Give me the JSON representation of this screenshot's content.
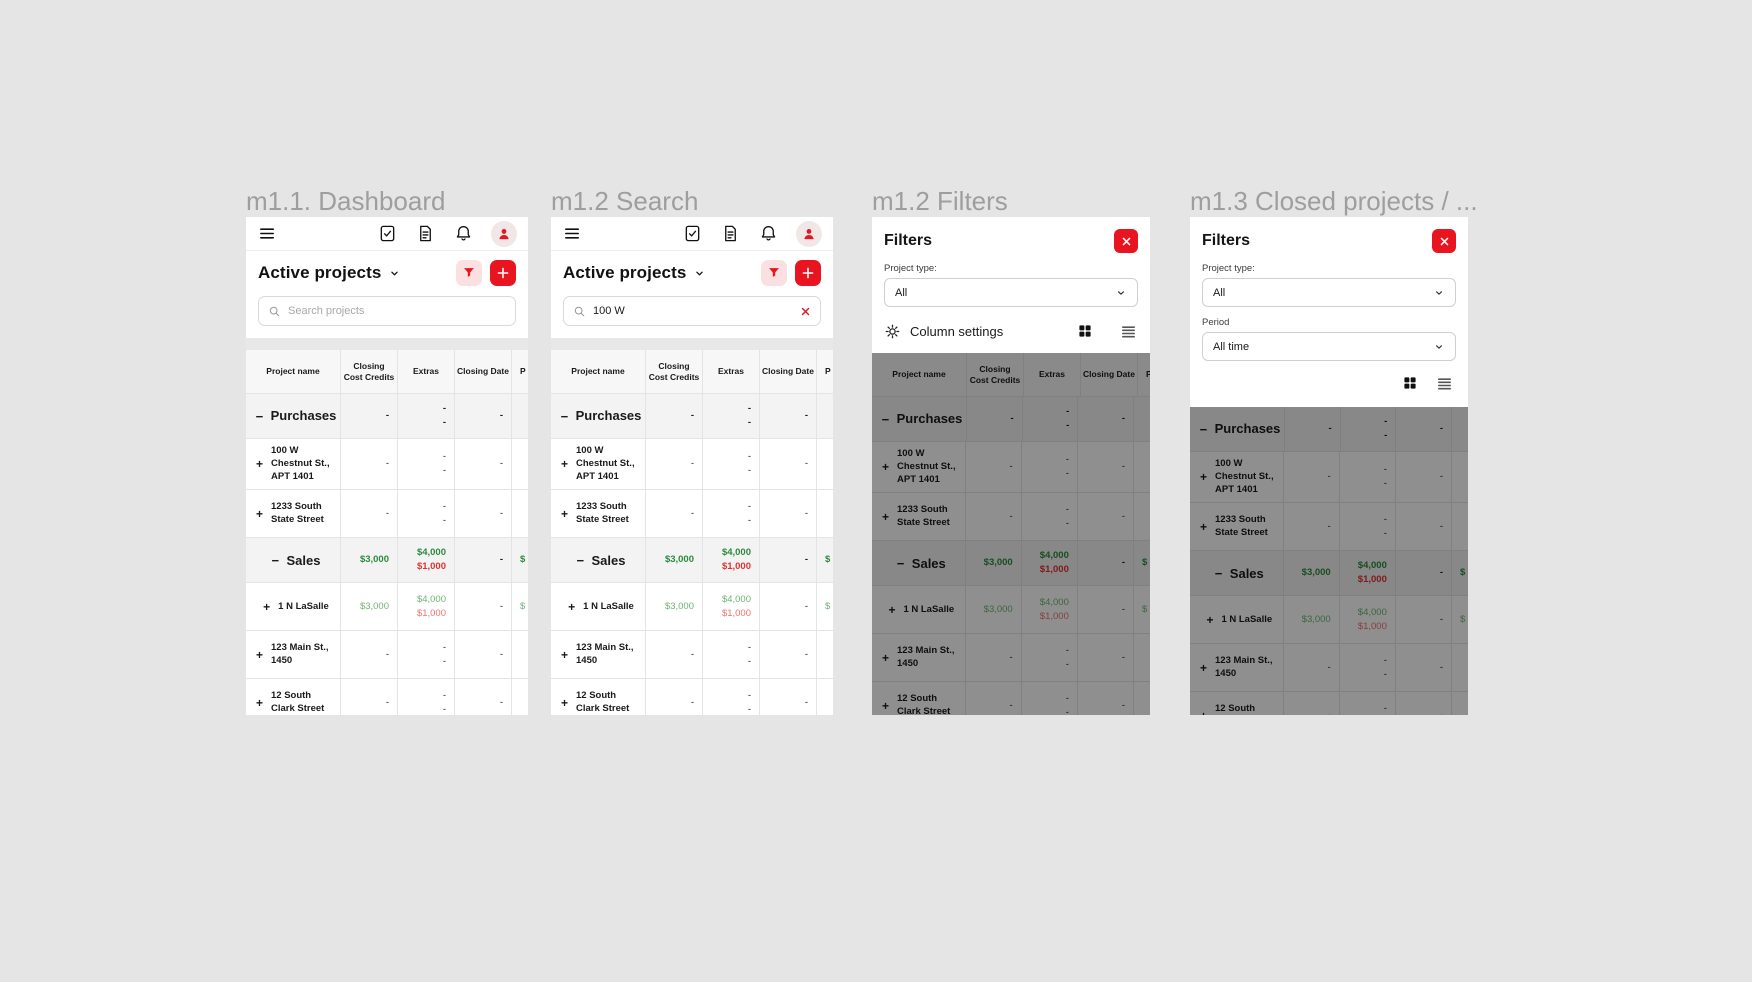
{
  "titles": [
    "m1.1. Dashboard",
    "m1.2 Search",
    "m1.2 Filters",
    "m1.3 Closed projects / ..."
  ],
  "toolbar": {
    "heading": "Active projects"
  },
  "search": {
    "placeholder": "Search projects",
    "query": "100 W"
  },
  "filters": {
    "title": "Filters",
    "project_type_label": "Project type:",
    "project_type_value": "All",
    "period_label": "Period",
    "period_value": "All time",
    "column_settings_label": "Column settings"
  },
  "table": {
    "columns": [
      "Project name",
      "Closing Cost Credits",
      "Extras",
      "Closing Date",
      "P"
    ],
    "rows": [
      {
        "kind": "group",
        "toggle": "−",
        "name": "Purchases",
        "credits": {
          "t": "-",
          "c": ""
        },
        "extras": [
          {
            "t": "-",
            "c": ""
          },
          {
            "t": "-",
            "c": ""
          }
        ],
        "date": {
          "t": "-",
          "c": ""
        },
        "price": {
          "t": "",
          "c": ""
        }
      },
      {
        "kind": "item",
        "toggle": "+",
        "name": "100 W Chestnut St., APT 1401",
        "credits": {
          "t": "-",
          "c": ""
        },
        "extras": [
          {
            "t": "-",
            "c": ""
          },
          {
            "t": "-",
            "c": ""
          }
        ],
        "date": {
          "t": "-",
          "c": ""
        },
        "price": {
          "t": "",
          "c": ""
        }
      },
      {
        "kind": "item",
        "toggle": "+",
        "name": "1233 South State Street",
        "credits": {
          "t": "-",
          "c": ""
        },
        "extras": [
          {
            "t": "-",
            "c": ""
          },
          {
            "t": "-",
            "c": ""
          }
        ],
        "date": {
          "t": "-",
          "c": ""
        },
        "price": {
          "t": "",
          "c": ""
        }
      },
      {
        "kind": "group",
        "toggle": "−",
        "name": "Sales",
        "credits": {
          "t": "$3,000",
          "c": "g"
        },
        "extras": [
          {
            "t": "$4,000",
            "c": "g"
          },
          {
            "t": "$1,000",
            "c": "r"
          }
        ],
        "date": {
          "t": "-",
          "c": ""
        },
        "price": {
          "t": "$",
          "c": "g"
        }
      },
      {
        "kind": "item",
        "toggle": "+",
        "name": "1 N LaSalle",
        "credits": {
          "t": "$3,000",
          "c": "gl"
        },
        "extras": [
          {
            "t": "$4,000",
            "c": "gl"
          },
          {
            "t": "$1,000",
            "c": "rl"
          }
        ],
        "date": {
          "t": "-",
          "c": ""
        },
        "price": {
          "t": "$",
          "c": "gl"
        }
      },
      {
        "kind": "item",
        "toggle": "+",
        "name": "123 Main St., 1450",
        "credits": {
          "t": "-",
          "c": ""
        },
        "extras": [
          {
            "t": "-",
            "c": ""
          },
          {
            "t": "-",
            "c": ""
          }
        ],
        "date": {
          "t": "-",
          "c": ""
        },
        "price": {
          "t": "",
          "c": ""
        }
      },
      {
        "kind": "item",
        "toggle": "+",
        "name": "12 South Clark Street",
        "credits": {
          "t": "-",
          "c": ""
        },
        "extras": [
          {
            "t": "-",
            "c": ""
          },
          {
            "t": "-",
            "c": ""
          }
        ],
        "date": {
          "t": "-",
          "c": ""
        },
        "price": {
          "t": "",
          "c": ""
        }
      }
    ]
  },
  "icons": {
    "menu-icon": "≡",
    "tasks-icon": "🗹",
    "document-icon": "🗎",
    "notifications-icon": "🔔",
    "profile-icon": "👤",
    "chevron-down-icon": "⌄",
    "filter-icon": "▼",
    "add-icon": "+",
    "search-icon": "🔍",
    "clear-icon": "✕",
    "close-icon": "✕",
    "gear-icon": "⚙",
    "grid-view-icon": "▦",
    "list-view-icon": "≣",
    "collapse-icon": "−",
    "expand-icon": "+"
  },
  "colors": {
    "accent_red": "#e8141f",
    "pink_button": "#fbe0e2",
    "green_strong": "#2b8a3e",
    "green_light": "#6fb573",
    "red_strong": "#e03131",
    "red_light": "#f07070",
    "title_gray": "#9e9e9e",
    "page_bg": "#e5e5e5",
    "scrim": "rgba(0,0,0,0.44)"
  }
}
